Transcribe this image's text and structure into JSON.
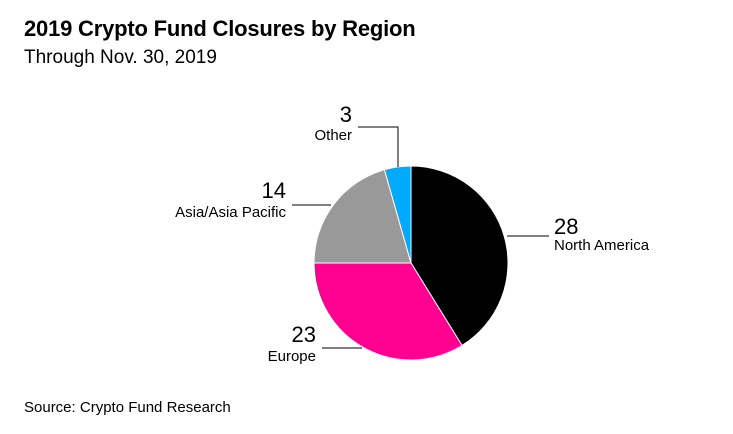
{
  "header": {
    "title": "2019 Crypto Fund Closures by Region",
    "subtitle": "Through Nov. 30, 2019"
  },
  "footer": {
    "source": "Source: Crypto Fund Research"
  },
  "chart_data": {
    "type": "pie",
    "title": "2019 Crypto Fund Closures by Region",
    "subtitle": "Through Nov. 30, 2019",
    "slices": [
      {
        "label": "North America",
        "value": 28,
        "color": "#000000"
      },
      {
        "label": "Europe",
        "value": 23,
        "color": "#ff0090"
      },
      {
        "label": "Asia/Asia Pacific",
        "value": 14,
        "color": "#999999"
      },
      {
        "label": "Other",
        "value": 3,
        "color": "#00aaff"
      }
    ],
    "source": "Source: Crypto Fund Research"
  }
}
